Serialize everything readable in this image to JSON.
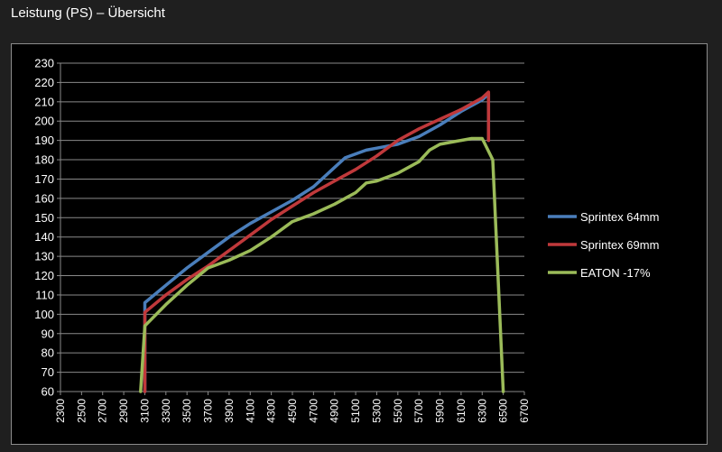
{
  "title": "Leistung (PS) – Übersicht",
  "chart_data": {
    "type": "line",
    "xlabel": "",
    "ylabel": "",
    "ylim": [
      60,
      230
    ],
    "xlim": [
      2300,
      6700
    ],
    "x_ticks": [
      2300,
      2500,
      2700,
      2900,
      3100,
      3300,
      3500,
      3700,
      3900,
      4100,
      4300,
      4500,
      4700,
      4900,
      5100,
      5300,
      5500,
      5700,
      5900,
      6100,
      6300,
      6500,
      6700
    ],
    "y_ticks": [
      60,
      70,
      80,
      90,
      100,
      110,
      120,
      130,
      140,
      150,
      160,
      170,
      180,
      190,
      200,
      210,
      220,
      230
    ],
    "grid": true,
    "legend_position": "right",
    "series": [
      {
        "name": "Sprintex 64mm",
        "color": "#4a7ebb",
        "points": [
          [
            3100,
            60
          ],
          [
            3100,
            106
          ],
          [
            3300,
            115
          ],
          [
            3500,
            124
          ],
          [
            3700,
            132
          ],
          [
            3900,
            140
          ],
          [
            4100,
            147
          ],
          [
            4300,
            153
          ],
          [
            4500,
            159
          ],
          [
            4700,
            166
          ],
          [
            4900,
            176
          ],
          [
            5000,
            181
          ],
          [
            5100,
            183
          ],
          [
            5200,
            185
          ],
          [
            5300,
            186
          ],
          [
            5500,
            188
          ],
          [
            5700,
            192
          ],
          [
            5900,
            198
          ],
          [
            6100,
            205
          ],
          [
            6300,
            211
          ],
          [
            6360,
            214
          ],
          [
            6360,
            190
          ]
        ]
      },
      {
        "name": "Sprintex 69mm",
        "color": "#c0393b",
        "points": [
          [
            3100,
            60
          ],
          [
            3100,
            101
          ],
          [
            3300,
            110
          ],
          [
            3500,
            118
          ],
          [
            3700,
            125
          ],
          [
            3900,
            133
          ],
          [
            4100,
            141
          ],
          [
            4300,
            149
          ],
          [
            4500,
            156
          ],
          [
            4700,
            163
          ],
          [
            4900,
            169
          ],
          [
            5100,
            175
          ],
          [
            5300,
            182
          ],
          [
            5500,
            190
          ],
          [
            5700,
            196
          ],
          [
            5900,
            201
          ],
          [
            6100,
            206
          ],
          [
            6300,
            212
          ],
          [
            6360,
            215
          ],
          [
            6360,
            190
          ]
        ]
      },
      {
        "name": "EATON -17%",
        "color": "#9bbb59",
        "points": [
          [
            3060,
            60
          ],
          [
            3100,
            94
          ],
          [
            3300,
            105
          ],
          [
            3500,
            115
          ],
          [
            3700,
            124
          ],
          [
            3900,
            128
          ],
          [
            4100,
            133
          ],
          [
            4300,
            140
          ],
          [
            4500,
            148
          ],
          [
            4700,
            152
          ],
          [
            4900,
            157
          ],
          [
            5100,
            163
          ],
          [
            5200,
            168
          ],
          [
            5300,
            169
          ],
          [
            5500,
            173
          ],
          [
            5700,
            179
          ],
          [
            5800,
            185
          ],
          [
            5900,
            188
          ],
          [
            6100,
            190
          ],
          [
            6200,
            191
          ],
          [
            6300,
            191
          ],
          [
            6400,
            180
          ],
          [
            6500,
            60
          ]
        ]
      }
    ]
  }
}
